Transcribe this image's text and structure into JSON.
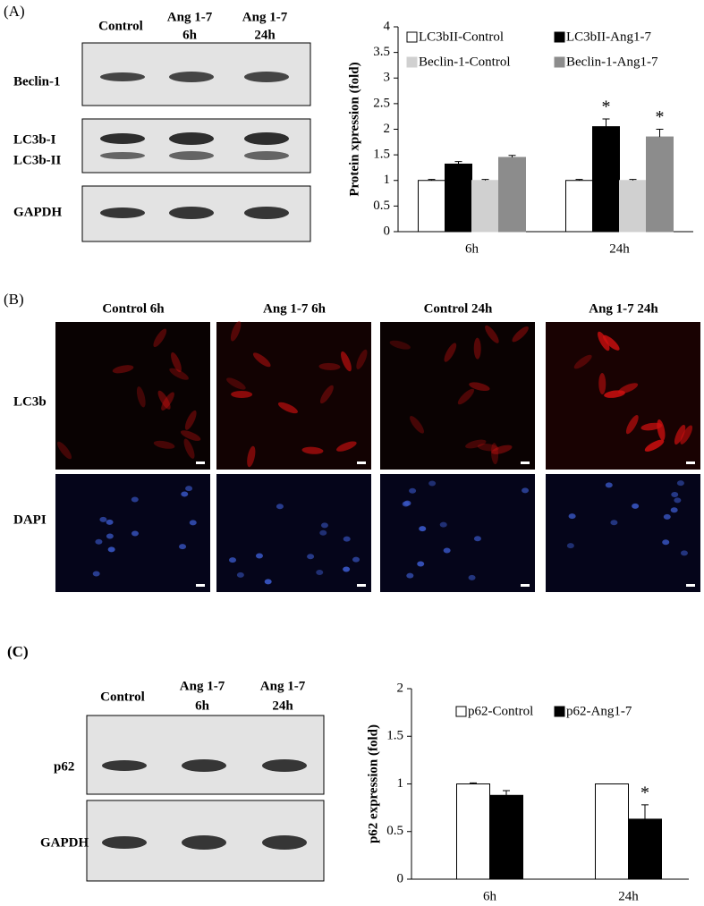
{
  "panel_a": {
    "label": "(A)",
    "lanes": [
      [
        "Control"
      ],
      [
        "Ang 1-7",
        "6h"
      ],
      [
        "Ang 1-7",
        "24h"
      ]
    ],
    "rows": [
      "Beclin-1",
      "LC3b-I",
      "LC3b-II",
      "GAPDH"
    ]
  },
  "panel_b": {
    "label": "(B)",
    "columns": [
      "Control  6h",
      "Ang 1-7  6h",
      "Control  24h",
      "Ang 1-7  24h"
    ],
    "rows": [
      "LC3b",
      "DAPI"
    ]
  },
  "panel_c": {
    "label": "(C)",
    "lanes": [
      [
        "Control"
      ],
      [
        "Ang 1-7",
        "6h"
      ],
      [
        "Ang 1-7",
        "24h"
      ]
    ],
    "rows": [
      "p62",
      "GAPDH"
    ]
  },
  "chart_data": [
    {
      "type": "bar",
      "y_label": "Protein xpression (fold)",
      "categories": [
        "6h",
        "24h"
      ],
      "series": [
        {
          "name": "LC3bII-Control",
          "color": "#ffffff",
          "values": [
            1.0,
            1.0
          ],
          "errors": [
            0.02,
            0.02
          ],
          "marks": [
            null,
            null
          ]
        },
        {
          "name": "LC3bII-Ang1-7",
          "color": "#000000",
          "values": [
            1.32,
            2.05
          ],
          "errors": [
            0.05,
            0.15
          ],
          "marks": [
            null,
            "*"
          ]
        },
        {
          "name": "Beclin-1-Control",
          "color": "#d0d0d0",
          "values": [
            1.0,
            1.0
          ],
          "errors": [
            0.02,
            0.02
          ],
          "marks": [
            null,
            null
          ]
        },
        {
          "name": "Beclin-1-Ang1-7",
          "color": "#8c8c8c",
          "values": [
            1.45,
            1.85
          ],
          "errors": [
            0.04,
            0.15
          ],
          "marks": [
            null,
            "*"
          ]
        }
      ],
      "ylim": [
        0,
        4
      ],
      "yticks": [
        0,
        0.5,
        1,
        1.5,
        2,
        2.5,
        3,
        3.5,
        4
      ],
      "legend": "top"
    },
    {
      "type": "bar",
      "y_label": "p62 expression (fold)",
      "categories": [
        "6h",
        "24h"
      ],
      "series": [
        {
          "name": "p62-Control",
          "color": "#ffffff",
          "values": [
            1.0,
            1.0
          ],
          "errors": [
            0.01,
            0.0
          ],
          "marks": [
            null,
            null
          ]
        },
        {
          "name": "p62-Ang1-7",
          "color": "#000000",
          "values": [
            0.88,
            0.63
          ],
          "errors": [
            0.05,
            0.15
          ],
          "marks": [
            null,
            "*"
          ]
        }
      ],
      "ylim": [
        0,
        2
      ],
      "yticks": [
        0,
        0.5,
        1,
        1.5,
        2
      ],
      "legend": "top"
    }
  ]
}
